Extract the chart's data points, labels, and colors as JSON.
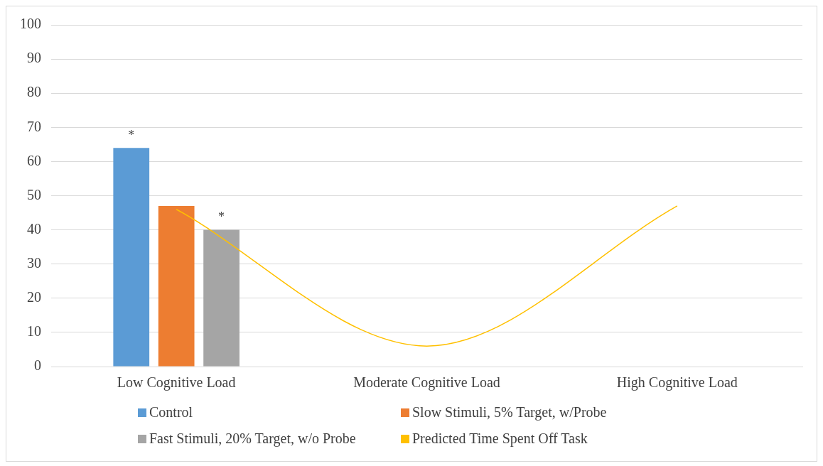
{
  "chart_data": {
    "type": "bar",
    "categories": [
      "Low Cognitive Load",
      "Moderate Cognitive Load",
      "High Cognitive Load"
    ],
    "series": [
      {
        "name": "Control",
        "color": "#5b9bd5",
        "values": [
          64,
          null,
          null
        ]
      },
      {
        "name": "Slow Stimuli, 5% Target, w/Probe",
        "color": "#ed7d31",
        "values": [
          47,
          null,
          null
        ]
      },
      {
        "name": "Fast Stimuli, 20% Target, w/o Probe",
        "color": "#a5a5a5",
        "values": [
          40,
          null,
          null
        ]
      },
      {
        "name": "Predicted Time Spent Off Task",
        "type": "line",
        "color": "#ffc000",
        "marker": "none",
        "values": [
          46,
          6,
          47
        ]
      }
    ],
    "ylim": [
      0,
      100
    ],
    "yticks": [
      0,
      10,
      20,
      30,
      40,
      50,
      60,
      70,
      80,
      90,
      100
    ],
    "grid": "y",
    "legend": "bottom",
    "annotations": [
      "*",
      "*"
    ]
  }
}
